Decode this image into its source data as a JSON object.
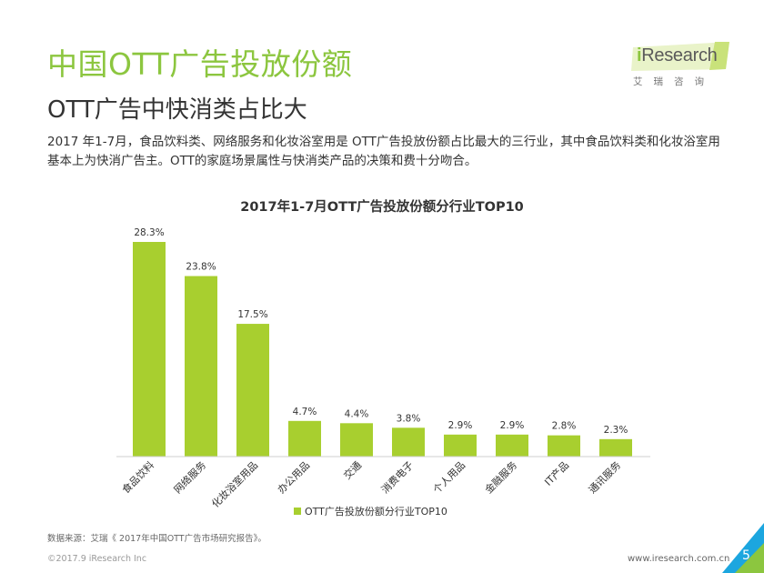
{
  "header": {
    "title": "中国OTT广告投放份额",
    "subtitle": "OTT广告中快消类占比大",
    "description": "2017 年1-7月，食品饮料类、网络服务和化妆浴室用是 OTT广告投放份额占比最大的三行业，其中食品饮料类和化妆浴室用基本上为快消广告主。OTT的家庭场景属性与快消类产品的决策和费十分吻合。"
  },
  "logo": {
    "prefix": "i",
    "name": "Research",
    "subtitle": "艾瑞咨询"
  },
  "colors": {
    "accent": "#8cc63f",
    "bar": "#a8cf2f",
    "corner_blue": "#1ca6df",
    "corner_green": "#8cc63f"
  },
  "chart_data": {
    "type": "bar",
    "title": "2017年1-7月OTT广告投放份额分行业TOP10",
    "categories": [
      "食品饮料",
      "网络服务",
      "化妆浴室用品",
      "办公用品",
      "交通",
      "消费电子",
      "个人用品",
      "金融服务",
      "IT产品",
      "通讯服务"
    ],
    "series": [
      {
        "name": "OTT广告投放份额分行业TOP10",
        "values": [
          28.3,
          23.8,
          17.5,
          4.7,
          4.4,
          3.8,
          2.9,
          2.9,
          2.8,
          2.3
        ]
      }
    ],
    "data_labels": [
      "28.3%",
      "23.8%",
      "17.5%",
      "4.7%",
      "4.4%",
      "3.8%",
      "2.9%",
      "2.9%",
      "2.8%",
      "2.3%"
    ],
    "ylim": [
      0,
      28.3
    ],
    "xlabel": "",
    "ylabel": "",
    "grid": false,
    "legend": "bottom"
  },
  "footer": {
    "source": "数据来源：艾瑞《 2017年中国OTT广告市场研究报告》。",
    "copyright": "©2017.9 iResearch Inc",
    "website": "www.iresearch.com.cn",
    "page": "5"
  }
}
